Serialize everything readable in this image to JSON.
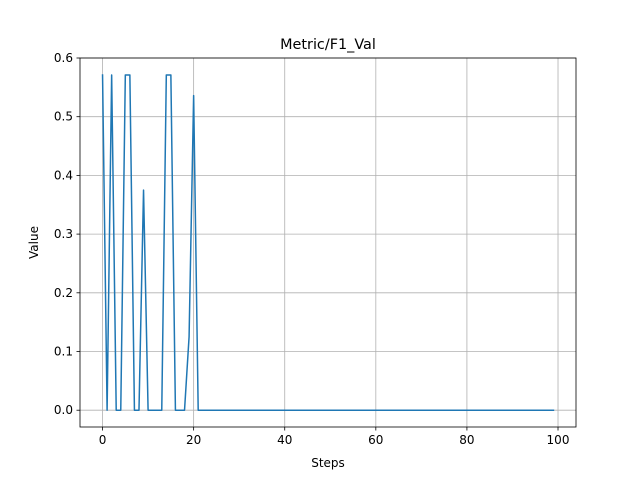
{
  "chart_data": {
    "type": "line",
    "title": "Metric/F1_Val",
    "xlabel": "Steps",
    "ylabel": "Value",
    "xlim": [
      -4.95,
      103.95
    ],
    "ylim": [
      -0.0286,
      0.6
    ],
    "x_ticks": [
      0,
      20,
      40,
      60,
      80,
      100
    ],
    "y_ticks": [
      0.0,
      0.1,
      0.2,
      0.3,
      0.4,
      0.5,
      0.6
    ],
    "x_tick_labels": [
      "0",
      "20",
      "40",
      "60",
      "80",
      "100"
    ],
    "y_tick_labels": [
      "0.0",
      "0.1",
      "0.2",
      "0.3",
      "0.4",
      "0.5",
      "0.6"
    ],
    "grid": true,
    "line_color": "#1f77b4",
    "grid_color": "#b0b0b0",
    "series": [
      {
        "x": [
          0,
          1,
          2,
          3,
          4,
          5,
          6,
          7,
          8,
          9,
          10,
          11,
          12,
          13,
          14,
          15,
          16,
          17,
          18,
          19,
          20,
          21,
          22,
          23,
          24,
          25,
          26,
          27,
          28,
          29,
          30,
          31,
          32,
          33,
          34,
          35,
          36,
          37,
          38,
          39,
          40,
          41,
          42,
          43,
          44,
          45,
          46,
          47,
          48,
          49,
          50,
          51,
          52,
          53,
          54,
          55,
          56,
          57,
          58,
          59,
          60,
          61,
          62,
          63,
          64,
          65,
          66,
          67,
          68,
          69,
          70,
          71,
          72,
          73,
          74,
          75,
          76,
          77,
          78,
          79,
          80,
          81,
          82,
          83,
          84,
          85,
          86,
          87,
          88,
          89,
          90,
          91,
          92,
          93,
          94,
          95,
          96,
          97,
          98,
          99
        ],
        "values": [
          0.571,
          0.0,
          0.571,
          0.0,
          0.0,
          0.571,
          0.571,
          0.0,
          0.0,
          0.375,
          0.0,
          0.0,
          0.0,
          0.0,
          0.571,
          0.571,
          0.0,
          0.0,
          0.0,
          0.125,
          0.536,
          0.0,
          0.0,
          0.0,
          0.0,
          0.0,
          0.0,
          0.0,
          0.0,
          0.0,
          0.0,
          0.0,
          0.0,
          0.0,
          0.0,
          0.0,
          0.0,
          0.0,
          0.0,
          0.0,
          0.0,
          0.0,
          0.0,
          0.0,
          0.0,
          0.0,
          0.0,
          0.0,
          0.0,
          0.0,
          0.0,
          0.0,
          0.0,
          0.0,
          0.0,
          0.0,
          0.0,
          0.0,
          0.0,
          0.0,
          0.0,
          0.0,
          0.0,
          0.0,
          0.0,
          0.0,
          0.0,
          0.0,
          0.0,
          0.0,
          0.0,
          0.0,
          0.0,
          0.0,
          0.0,
          0.0,
          0.0,
          0.0,
          0.0,
          0.0,
          0.0,
          0.0,
          0.0,
          0.0,
          0.0,
          0.0,
          0.0,
          0.0,
          0.0,
          0.0,
          0.0,
          0.0,
          0.0,
          0.0,
          0.0,
          0.0,
          0.0,
          0.0,
          0.0,
          0.0
        ]
      }
    ]
  }
}
